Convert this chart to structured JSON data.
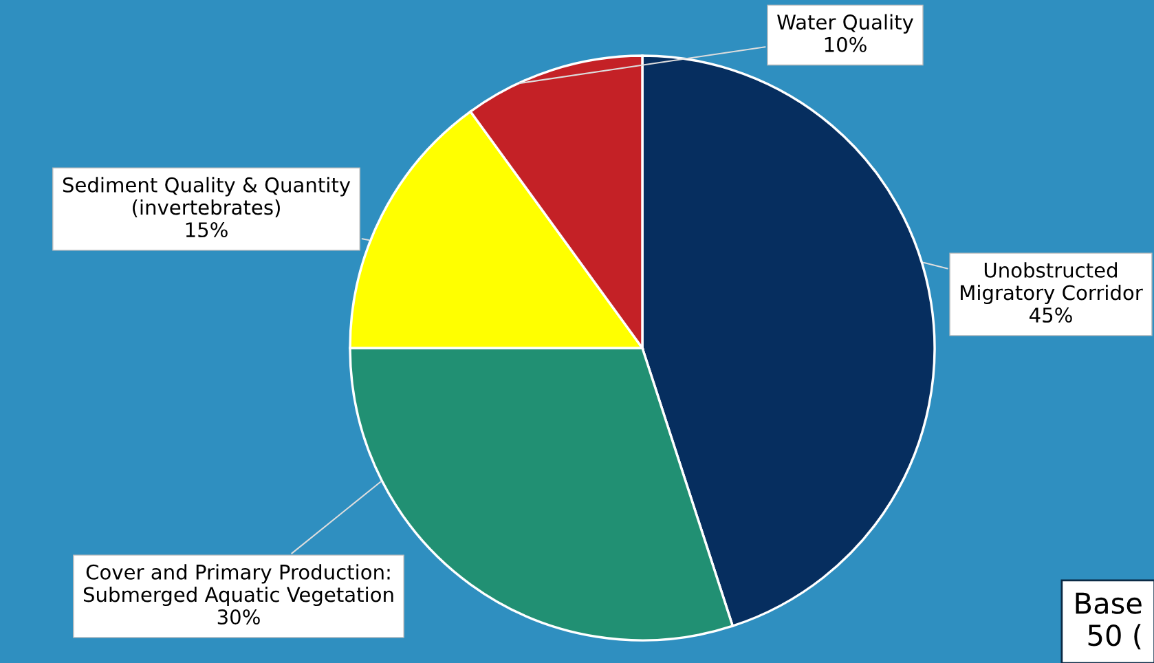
{
  "chart_data": {
    "type": "pie",
    "categories": [
      "Unobstructed\nMigratory Corridor",
      "Cover and Primary Production:\nSubmerged Aquatic Vegetation",
      "Sediment Quality & Quantity\n(invertebrates)",
      "Water Quality"
    ],
    "values": [
      45,
      30,
      15,
      10
    ],
    "colors": [
      "#062e5f",
      "#219073",
      "#ffff00",
      "#c42126"
    ],
    "value_labels": [
      "45%",
      "30%",
      "15%",
      "10%"
    ],
    "annotations": [
      "Base\n50 ("
    ],
    "legend": false
  }
}
